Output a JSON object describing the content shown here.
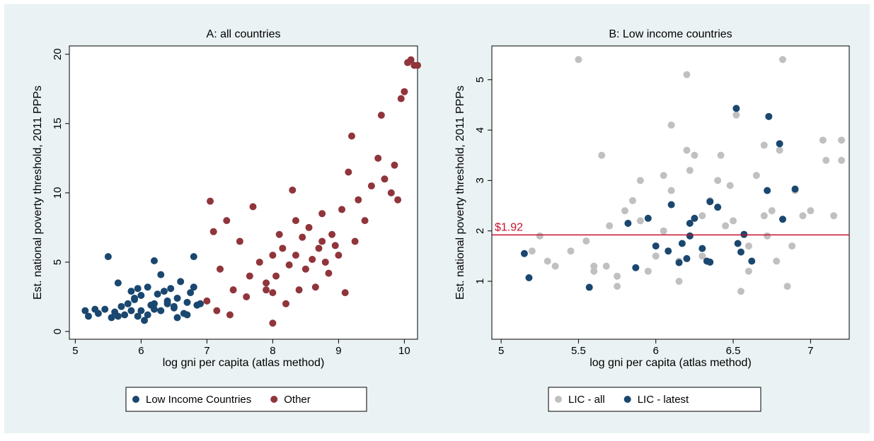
{
  "chart_data": [
    {
      "type": "scatter",
      "title": "A: all countries",
      "x_label": "log gni per capita (atlas method)",
      "y_label": "Est. national poverty threshold, 2011 PPPs",
      "xlim": [
        4.91,
        10.2
      ],
      "ylim": [
        -0.56,
        20.6
      ],
      "xticks": [
        5,
        6,
        7,
        8,
        9,
        10
      ],
      "yticks": [
        0,
        5,
        10,
        15,
        20
      ],
      "grid": false,
      "series": [
        {
          "name": "Low Income Countries",
          "color": "#1a476f",
          "x": [
            5.15,
            5.2,
            5.3,
            5.35,
            5.45,
            5.5,
            5.55,
            5.6,
            5.65,
            5.7,
            5.75,
            5.8,
            5.85,
            5.9,
            5.95,
            6.0,
            6.05,
            6.1,
            6.15,
            6.2,
            6.2,
            6.25,
            6.3,
            6.35,
            6.4,
            6.45,
            6.5,
            6.55,
            6.6,
            6.65,
            6.7,
            6.75,
            6.8,
            6.85,
            6.9,
            5.65,
            5.9,
            6.0,
            6.1,
            6.3,
            6.5,
            6.7,
            6.8,
            6.2,
            5.85,
            6.55,
            6.4,
            5.95
          ],
          "values": [
            1.5,
            1.1,
            1.6,
            1.3,
            1.6,
            5.4,
            1.0,
            1.4,
            3.5,
            1.8,
            1.2,
            2.0,
            1.5,
            2.3,
            1.1,
            2.6,
            0.8,
            3.2,
            1.9,
            5.1,
            2.0,
            2.7,
            1.5,
            2.9,
            2.2,
            3.1,
            1.7,
            2.4,
            3.6,
            1.3,
            2.1,
            2.8,
            5.4,
            1.9,
            2.0,
            1.1,
            2.4,
            1.5,
            1.2,
            4.1,
            1.8,
            1.2,
            3.2,
            1.6,
            2.9,
            1.0,
            2.0,
            3.1
          ]
        },
        {
          "name": "Other",
          "color": "#90353b",
          "x": [
            7.0,
            7.05,
            7.1,
            7.15,
            7.2,
            7.3,
            7.4,
            7.5,
            7.6,
            7.7,
            7.8,
            7.9,
            8.0,
            8.0,
            8.05,
            8.1,
            8.15,
            8.2,
            8.25,
            8.3,
            8.35,
            8.4,
            8.45,
            8.5,
            8.55,
            8.6,
            8.65,
            8.7,
            8.75,
            8.8,
            8.85,
            8.9,
            8.95,
            9.0,
            9.05,
            9.1,
            9.2,
            9.25,
            9.3,
            9.4,
            9.5,
            9.6,
            9.65,
            9.7,
            9.8,
            9.85,
            9.9,
            9.95,
            10.0,
            10.05,
            10.1,
            10.15,
            10.2,
            7.35,
            7.65,
            8.0,
            8.35,
            8.75,
            9.15,
            7.9
          ],
          "values": [
            2.2,
            9.4,
            7.2,
            1.5,
            4.5,
            8.0,
            3.0,
            6.5,
            2.5,
            9.0,
            5.0,
            3.5,
            0.6,
            5.5,
            4.0,
            7.0,
            6.0,
            2.0,
            4.8,
            10.2,
            5.5,
            3.0,
            6.8,
            4.5,
            7.5,
            5.2,
            3.2,
            6.0,
            8.5,
            5.0,
            4.2,
            7.0,
            6.2,
            5.5,
            8.8,
            2.8,
            14.1,
            6.5,
            9.5,
            8.0,
            10.5,
            12.5,
            15.6,
            11.0,
            10.0,
            12.0,
            9.5,
            16.8,
            17.3,
            19.4,
            19.6,
            19.2,
            19.2,
            1.2,
            4.0,
            2.8,
            8.0,
            6.5,
            11.5,
            3.0
          ]
        }
      ]
    },
    {
      "type": "scatter",
      "title": "B: Low income countries",
      "x_label": "log gni per capita (atlas method)",
      "y_label": "Est. national poverty threshold, 2011 PPPs",
      "xlim": [
        4.94,
        7.25
      ],
      "ylim": [
        -0.15,
        5.67
      ],
      "xticks": [
        5,
        5.5,
        6,
        6.5,
        7
      ],
      "yticks": [
        1,
        2,
        3,
        4,
        5
      ],
      "grid": false,
      "hline": {
        "value": 1.92,
        "label": "$1.92",
        "color": "#c8102e"
      },
      "series": [
        {
          "name": "LIC - all",
          "color": "#c0c0c0",
          "x": [
            5.2,
            5.25,
            5.3,
            5.35,
            5.45,
            5.5,
            5.55,
            5.6,
            5.65,
            5.7,
            5.75,
            5.8,
            5.85,
            5.9,
            5.95,
            6.0,
            6.05,
            6.1,
            6.15,
            6.2,
            6.2,
            6.22,
            6.25,
            6.3,
            6.35,
            6.4,
            6.45,
            6.5,
            6.52,
            6.55,
            6.6,
            6.65,
            6.7,
            6.72,
            6.75,
            6.8,
            6.82,
            6.85,
            6.9,
            6.95,
            7.0,
            7.08,
            7.1,
            7.15,
            7.2,
            7.2,
            5.6,
            5.75,
            5.9,
            6.05,
            6.15,
            6.3,
            6.42,
            6.6,
            6.78,
            6.88,
            5.68,
            6.1,
            6.48,
            6.7
          ],
          "values": [
            1.6,
            1.9,
            1.4,
            1.3,
            1.6,
            5.4,
            1.8,
            1.2,
            3.5,
            2.1,
            0.9,
            2.4,
            2.6,
            3.0,
            1.2,
            1.5,
            3.1,
            4.1,
            1.4,
            5.1,
            3.6,
            3.2,
            3.5,
            1.5,
            2.6,
            3.0,
            2.1,
            2.2,
            4.3,
            0.8,
            1.7,
            3.1,
            3.7,
            1.9,
            2.4,
            3.6,
            5.4,
            0.9,
            2.8,
            2.3,
            2.4,
            3.8,
            3.4,
            2.3,
            3.8,
            3.4,
            1.3,
            1.1,
            2.2,
            2.0,
            1.0,
            2.3,
            3.5,
            1.2,
            1.4,
            1.7,
            1.3,
            2.8,
            2.9,
            2.3
          ]
        },
        {
          "name": "LIC - latest",
          "color": "#1a476f",
          "x": [
            5.15,
            5.18,
            5.57,
            5.82,
            5.87,
            5.95,
            6.0,
            6.08,
            6.1,
            6.15,
            6.17,
            6.2,
            6.22,
            6.25,
            6.3,
            6.33,
            6.35,
            6.4,
            6.52,
            6.53,
            6.55,
            6.62,
            6.72,
            6.73,
            6.8,
            6.82,
            6.9,
            6.35,
            6.22,
            6.57
          ],
          "values": [
            1.55,
            1.07,
            0.88,
            2.15,
            1.27,
            2.25,
            1.7,
            1.6,
            2.52,
            1.37,
            1.75,
            1.45,
            1.9,
            2.25,
            1.65,
            1.4,
            2.58,
            2.47,
            4.43,
            1.75,
            1.58,
            1.4,
            2.8,
            4.27,
            3.73,
            2.23,
            2.83,
            1.38,
            2.15,
            1.93
          ]
        }
      ]
    }
  ]
}
